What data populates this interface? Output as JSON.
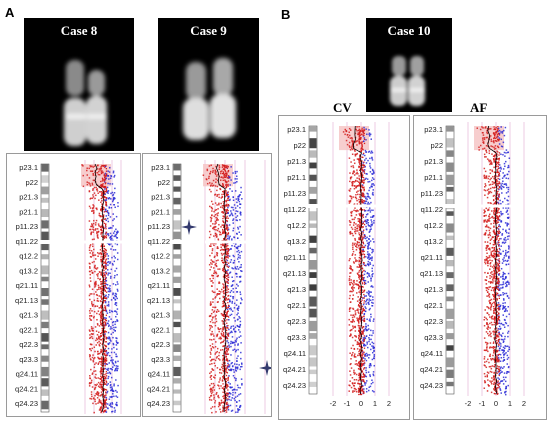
{
  "panels": [
    {
      "letter": "A"
    },
    {
      "letter": "B"
    }
  ],
  "cases": [
    {
      "id": "case8",
      "title": "Case 8"
    },
    {
      "id": "case9",
      "title": "Case 9"
    },
    {
      "id": "case10",
      "title": "Case 10"
    }
  ],
  "column_labels": {
    "cv": "CV",
    "af": "AF"
  },
  "plots": [
    {
      "id": "plot-a1",
      "bands": [
        "p23.1",
        "p22",
        "p21.3",
        "p21.1",
        "p11.23",
        "q11.22",
        "q12.2",
        "q13.2",
        "q21.11",
        "q21.13",
        "q21.3",
        "q22.1",
        "q22.3",
        "q23.3",
        "q24.11",
        "q24.21",
        "q24.23"
      ],
      "x_ticks": [],
      "gain_region": "p23.1-p22"
    },
    {
      "id": "plot-a2",
      "bands": [
        "p23.1",
        "p22",
        "p21.3",
        "p21.1",
        "p11.23",
        "q11.22",
        "q12.2",
        "q13.2",
        "q21.11",
        "q21.13",
        "q21.3",
        "q22.1",
        "q22.3",
        "q23.3",
        "q24.11",
        "q24.21",
        "q24.23"
      ],
      "x_ticks": [],
      "gain_region": "p23.1-p22"
    },
    {
      "id": "plot-b1",
      "bands": [
        "p23.1",
        "p22",
        "p21.3",
        "p21.1",
        "p11.23",
        "q11.22",
        "q12.2",
        "q13.2",
        "q21.11",
        "q21.13",
        "q21.3",
        "q22.1",
        "q22.3",
        "q23.3",
        "q24.11",
        "q24.21",
        "q24.23"
      ],
      "x_ticks": [
        "-2",
        "-1",
        "0",
        "1",
        "2"
      ],
      "gain_region": "p23.1-p22"
    },
    {
      "id": "plot-b2",
      "bands": [
        "p23.1",
        "p22",
        "p21.3",
        "p21.1",
        "p11.23",
        "q11.22",
        "q12.2",
        "q13.2",
        "q21.11",
        "q21.13",
        "q21.3",
        "q22.1",
        "q22.3",
        "q23.3",
        "q24.11",
        "q24.21",
        "q24.23"
      ],
      "x_ticks": [
        "-2",
        "-1",
        "0",
        "1",
        "2"
      ],
      "gain_region": "p23.1-p22"
    }
  ],
  "colors": {
    "probe_high": "#2b2bd6",
    "probe_low": "#d42020",
    "moving_average": "#000000",
    "highlight": "#f6c6c6",
    "background": "#ffffff"
  }
}
